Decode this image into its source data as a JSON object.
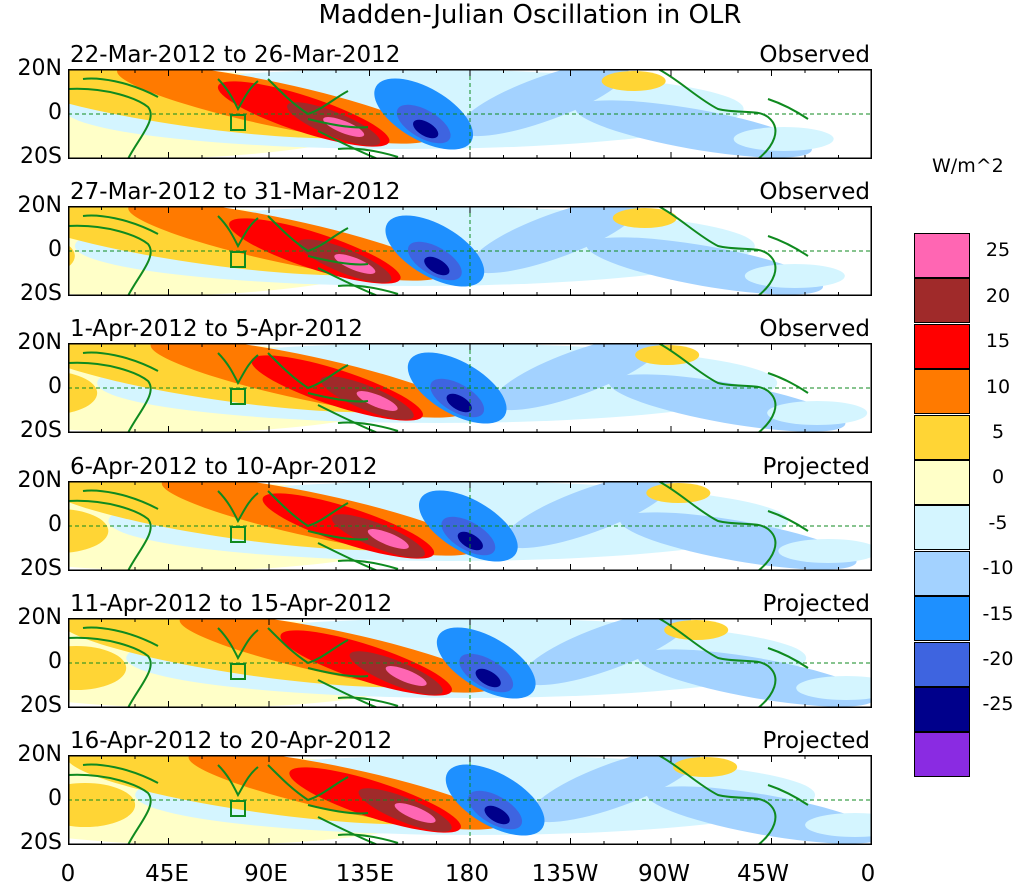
{
  "title": "Madden-Julian Oscillation in OLR",
  "panels": [
    {
      "date_range": "22-Mar-2012 to 26-Mar-2012",
      "status": "Observed",
      "center_lon": 110
    },
    {
      "date_range": "27-Mar-2012 to 31-Mar-2012",
      "status": "Observed",
      "center_lon": 115
    },
    {
      "date_range": "1-Apr-2012 to 5-Apr-2012",
      "status": "Observed",
      "center_lon": 125
    },
    {
      "date_range": "6-Apr-2012 to 10-Apr-2012",
      "status": "Projected",
      "center_lon": 130
    },
    {
      "date_range": "11-Apr-2012 to 15-Apr-2012",
      "status": "Projected",
      "center_lon": 138
    },
    {
      "date_range": "16-Apr-2012 to 20-Apr-2012",
      "status": "Projected",
      "center_lon": 142
    }
  ],
  "lat_labels": [
    "20N",
    "0",
    "20S"
  ],
  "lon_labels": [
    "0",
    "45E",
    "90E",
    "135E",
    "180",
    "135W",
    "90W",
    "45W",
    "0"
  ],
  "colorbar": {
    "unit": "W/m^2",
    "levels": [
      "25",
      "20",
      "15",
      "10",
      "5",
      "0",
      "-5",
      "-10",
      "-15",
      "-20",
      "-25"
    ],
    "colors": [
      "#ff66b3",
      "#a02a2a",
      "#ff0000",
      "#ff7a00",
      "#ffd535",
      "#ffffc8",
      "#d4f5ff",
      "#a3d2ff",
      "#1e90ff",
      "#3e64e0",
      "#00008b",
      "#8a2be2"
    ]
  },
  "map_colors": {
    "land_outline": "#0f8a1f",
    "equator_line": "#0f8a1f"
  }
}
